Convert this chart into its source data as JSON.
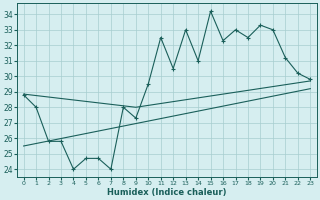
{
  "xlabel": "Humidex (Indice chaleur)",
  "bg_color": "#d6eef0",
  "grid_color": "#a8cdd0",
  "line_color": "#1a5f5a",
  "x_ticks": [
    0,
    1,
    2,
    3,
    4,
    5,
    6,
    7,
    8,
    9,
    10,
    11,
    12,
    13,
    14,
    15,
    16,
    17,
    18,
    19,
    20,
    21,
    22,
    23
  ],
  "y_ticks": [
    24,
    25,
    26,
    27,
    28,
    29,
    30,
    31,
    32,
    33,
    34
  ],
  "ylim": [
    23.5,
    34.7
  ],
  "xlim": [
    -0.5,
    23.5
  ],
  "main_series_x": [
    0,
    1,
    2,
    3,
    4,
    5,
    6,
    7,
    8,
    9,
    10,
    11,
    12,
    13,
    14,
    15,
    16,
    17,
    18,
    19,
    20,
    21,
    22,
    23
  ],
  "main_series_y": [
    28.8,
    28.0,
    25.8,
    25.8,
    24.0,
    24.7,
    24.7,
    24.0,
    28.0,
    27.3,
    29.5,
    32.5,
    30.5,
    33.0,
    31.0,
    34.2,
    32.3,
    33.0,
    32.5,
    33.3,
    33.0,
    31.2,
    30.2,
    29.8
  ],
  "upper_trend_x": [
    0,
    9,
    23
  ],
  "upper_trend_y": [
    28.85,
    28.0,
    29.7
  ],
  "lower_trend_x": [
    0,
    23
  ],
  "lower_trend_y": [
    25.5,
    29.2
  ]
}
